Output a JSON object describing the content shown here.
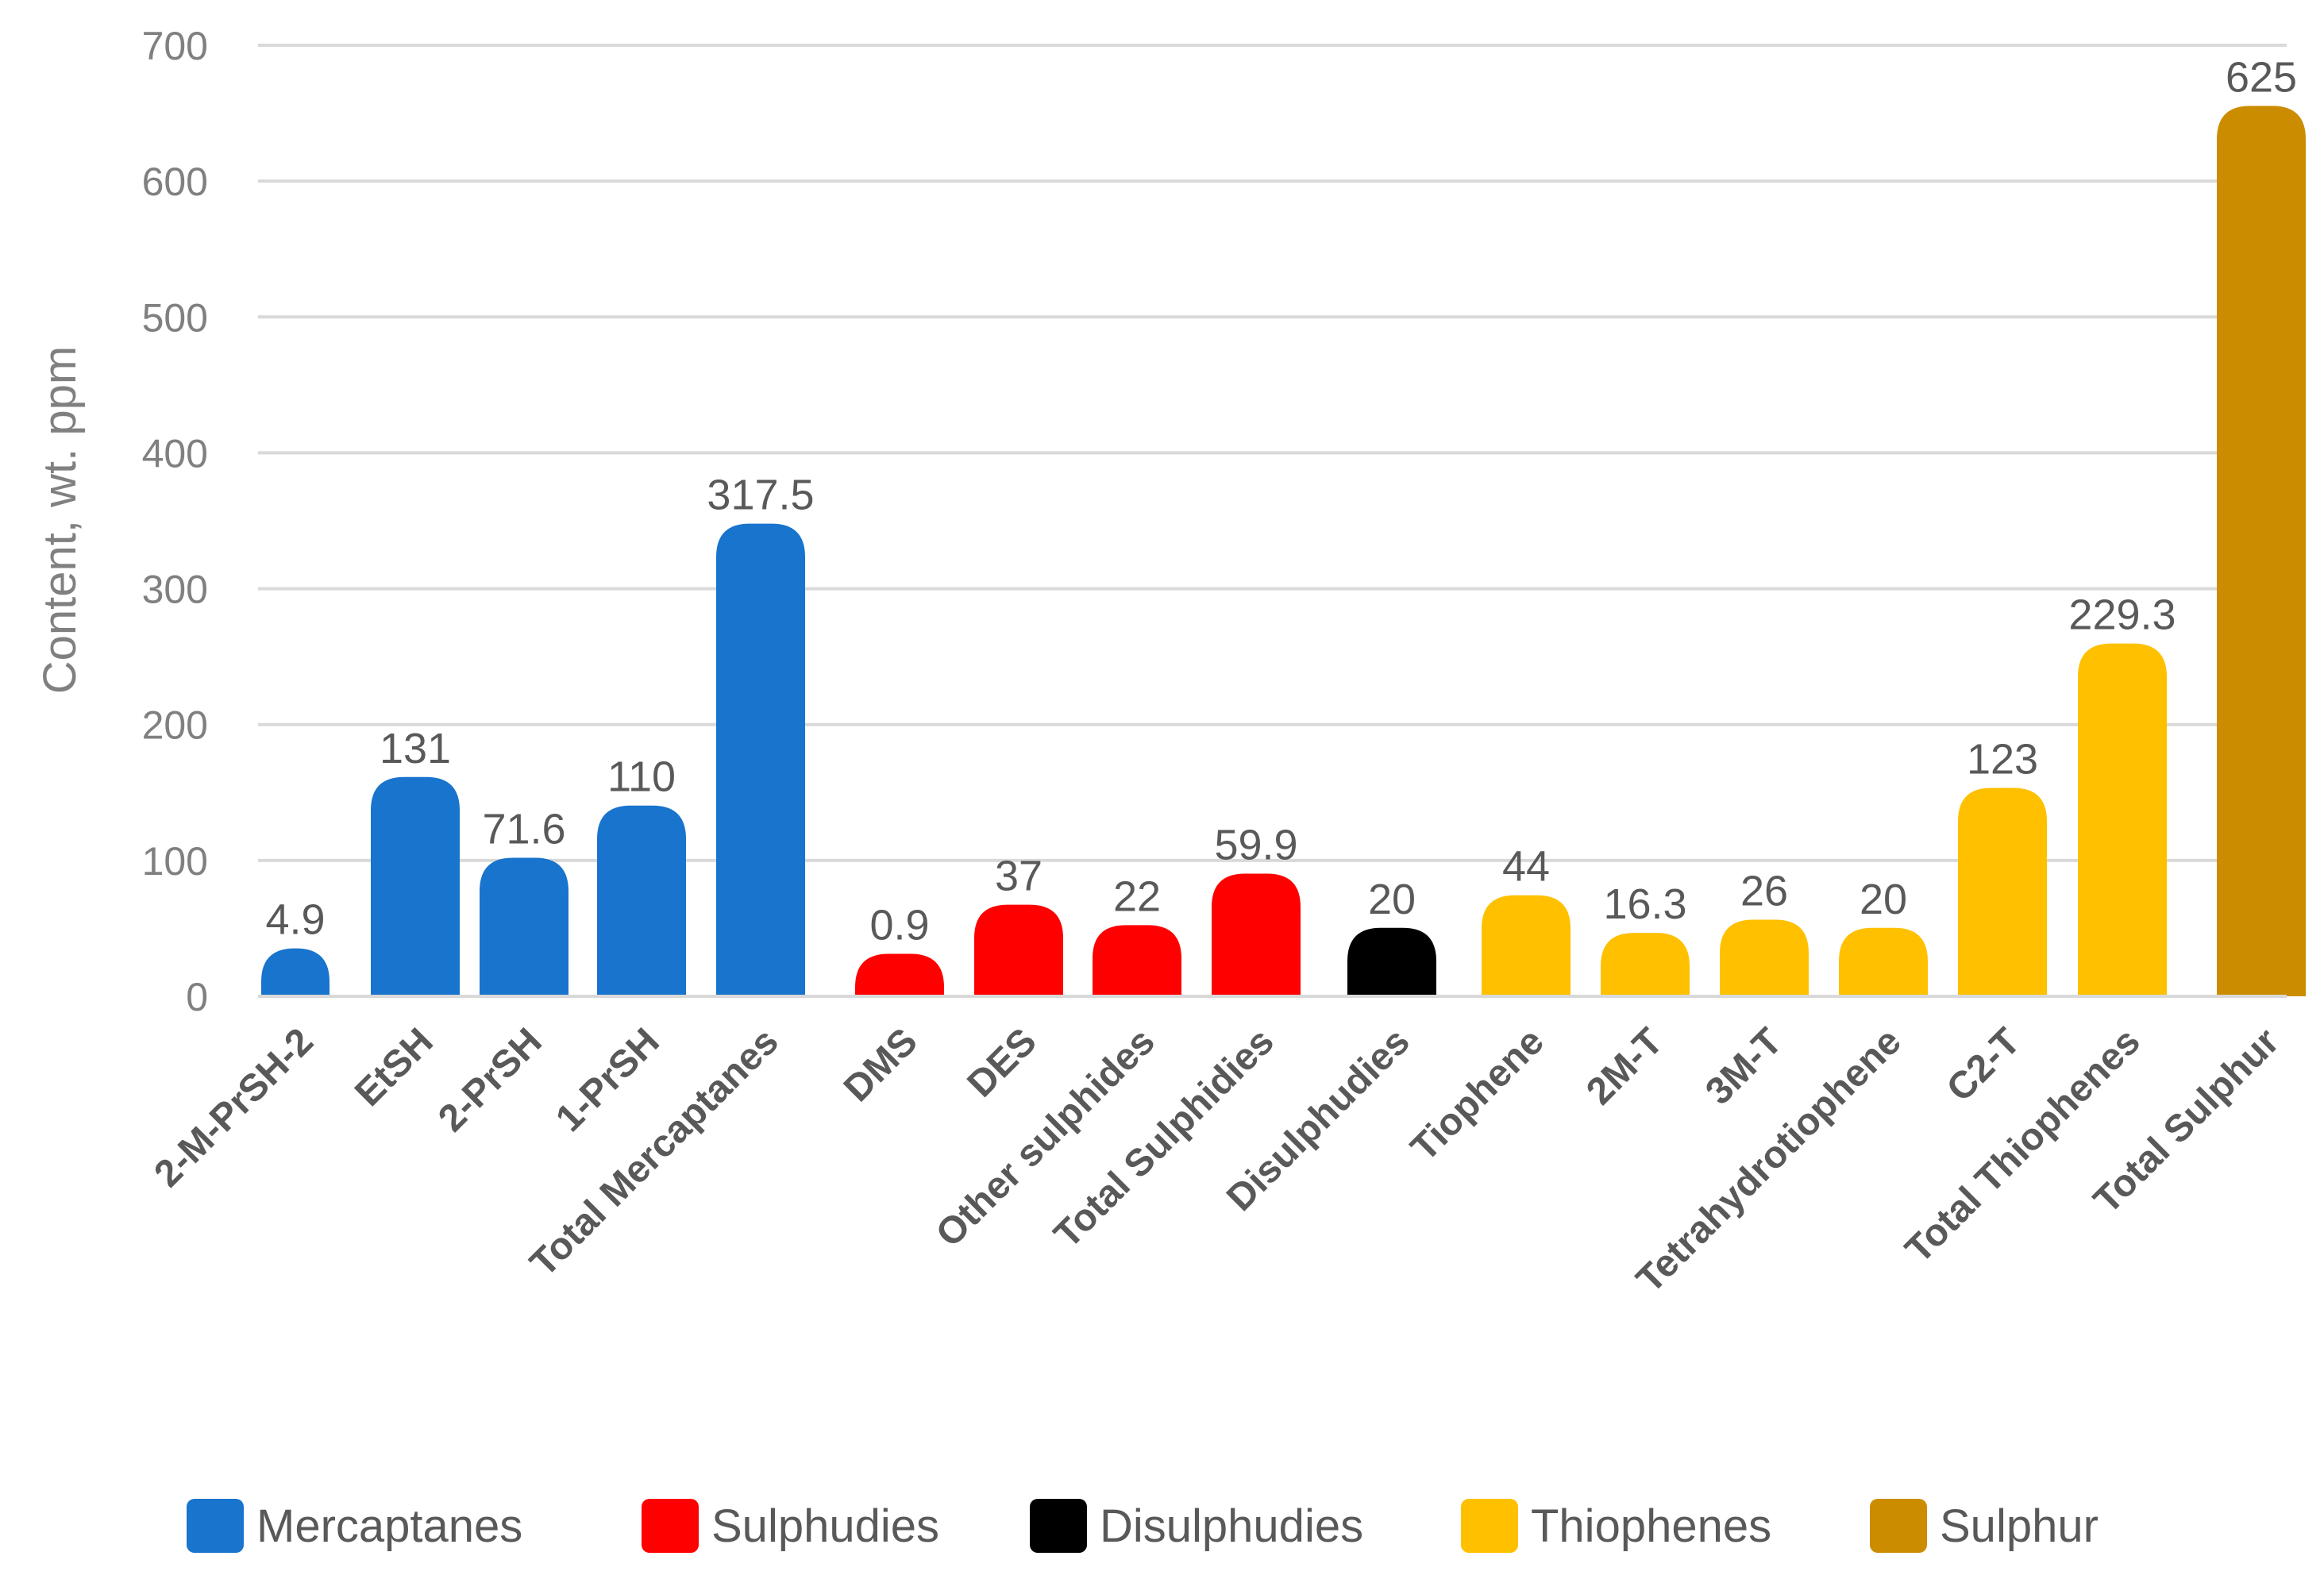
{
  "chart_data": {
    "type": "bar",
    "title": "",
    "xlabel": "",
    "ylabel": "Content, wt. ppm",
    "ylim": [
      0,
      700
    ],
    "yticks": [
      0,
      100,
      200,
      300,
      400,
      500,
      600,
      700
    ],
    "grid": true,
    "legend_position": "bottom",
    "groups": [
      {
        "name": "Mercaptanes",
        "color": "#1874CD"
      },
      {
        "name": "Sulphudies",
        "color": "#FF0000"
      },
      {
        "name": "Disulphudies",
        "color": "#000000"
      },
      {
        "name": "Thiophenes",
        "color": "#FFC000"
      },
      {
        "name": "Sulphur",
        "color": "#CC8C00"
      }
    ],
    "categories": [
      "2-M-PrSH-2",
      "EtSH",
      "2-PrSH",
      "1-PrSH",
      "Total  Mercaptanes",
      "DMS",
      "DES",
      "Other sulphides",
      "Total Sulphidies",
      "Disulphudies",
      "Tiophene",
      "2M-T",
      "3M-T",
      "Tetrahydrotiophene",
      "C2-T",
      "Total Thiophenes",
      "Total Sulphur"
    ],
    "values": [
      4.9,
      131,
      71.6,
      110,
      317.5,
      0.9,
      37,
      22,
      59.9,
      20,
      44,
      16.3,
      26,
      20,
      123,
      229.3,
      625
    ],
    "value_labels": [
      "4.9",
      "131",
      "71.6",
      "110",
      "317.5",
      "0.9",
      "37",
      "22",
      "59.9",
      "20",
      "44",
      "16.3",
      "26",
      "20",
      "123",
      "229.3",
      "625"
    ],
    "group_index": [
      0,
      0,
      0,
      0,
      0,
      1,
      1,
      1,
      1,
      2,
      3,
      3,
      3,
      3,
      3,
      3,
      4
    ]
  }
}
